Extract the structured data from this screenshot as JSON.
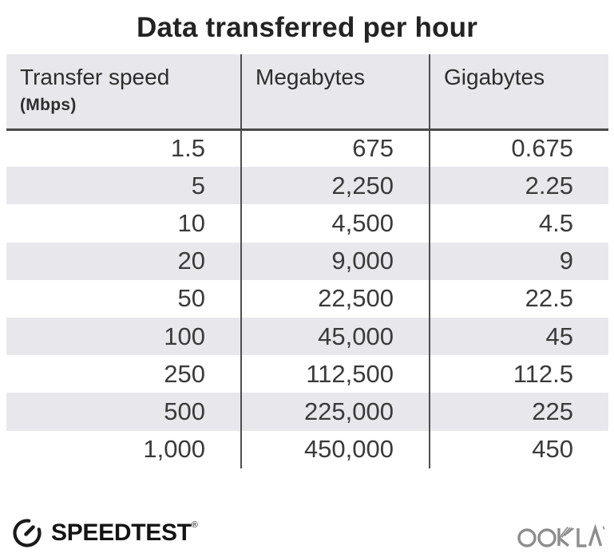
{
  "title": "Data transferred per hour",
  "table": {
    "columns": [
      {
        "label": "Transfer speed",
        "sublabel": "(Mbps)"
      },
      {
        "label": "Megabytes",
        "sublabel": ""
      },
      {
        "label": "Gigabytes",
        "sublabel": ""
      }
    ],
    "rows": [
      [
        "1.5",
        "675",
        "0.675"
      ],
      [
        "5",
        "2,250",
        "2.25"
      ],
      [
        "10",
        "4,500",
        "4.5"
      ],
      [
        "20",
        "9,000",
        "9"
      ],
      [
        "50",
        "22,500",
        "22.5"
      ],
      [
        "100",
        "45,000",
        "45"
      ],
      [
        "250",
        "112,500",
        "112.5"
      ],
      [
        "500",
        "225,000",
        "225"
      ],
      [
        "1,000",
        "450,000",
        "450"
      ]
    ]
  },
  "footer": {
    "speedtest_label": "SPEEDTEST",
    "speedtest_reg_mark": "®",
    "ookla_label": "OOKLA"
  },
  "colors": {
    "stripe_bg": "#e8e7eb",
    "header_bg": "#e8e7eb",
    "divider": "#4f4f4f",
    "header_text": "#2d2d2d",
    "number_text": "#3a3a3a",
    "title_text": "#232323",
    "speedtest_black": "#141414",
    "ookla_gray": "#8d8d8d"
  },
  "chart_data": {
    "type": "table",
    "title": "Data transferred per hour",
    "columns": [
      "Transfer speed (Mbps)",
      "Megabytes",
      "Gigabytes"
    ],
    "rows": [
      [
        1.5,
        675,
        0.675
      ],
      [
        5,
        2250,
        2.25
      ],
      [
        10,
        4500,
        4.5
      ],
      [
        20,
        9000,
        9
      ],
      [
        50,
        22500,
        22.5
      ],
      [
        100,
        45000,
        45
      ],
      [
        250,
        112500,
        112.5
      ],
      [
        500,
        225000,
        225
      ],
      [
        1000,
        450000,
        450
      ]
    ],
    "layout": {
      "striped_rows": true,
      "stripe_start": "second_row",
      "column_dividers": true
    }
  }
}
